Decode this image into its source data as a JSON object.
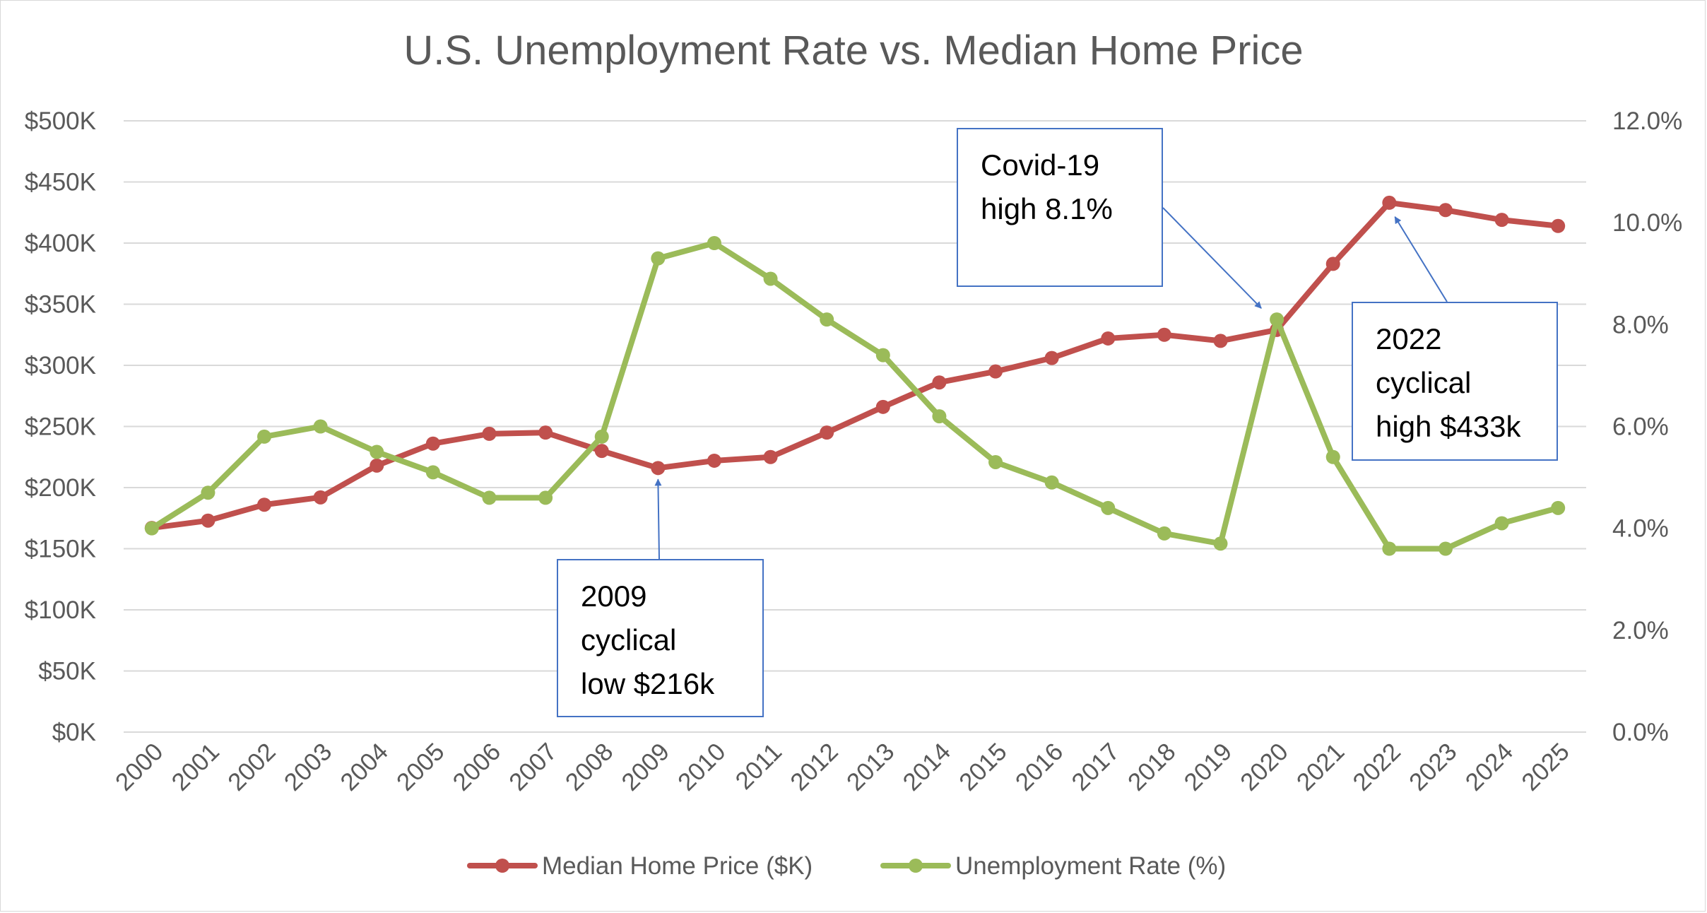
{
  "chart_data": {
    "type": "line",
    "title": "U.S. Unemployment Rate vs. Median Home Price",
    "xlabel": "",
    "ylabel": "",
    "categories": [
      "2000",
      "2001",
      "2002",
      "2003",
      "2004",
      "2005",
      "2006",
      "2007",
      "2008",
      "2009",
      "2010",
      "2011",
      "2012",
      "2013",
      "2014",
      "2015",
      "2016",
      "2017",
      "2018",
      "2019",
      "2020",
      "2021",
      "2022",
      "2023",
      "2024",
      "2025"
    ],
    "y_left": {
      "min": 0,
      "max": 500,
      "step": 50,
      "tick_labels": [
        "$0K",
        "$50K",
        "$100K",
        "$150K",
        "$200K",
        "$250K",
        "$300K",
        "$350K",
        "$400K",
        "$450K",
        "$500K"
      ]
    },
    "y_right": {
      "min": 0,
      "max": 12,
      "step": 2,
      "tick_labels": [
        "0.0%",
        "2.0%",
        "4.0%",
        "6.0%",
        "8.0%",
        "10.0%",
        "12.0%"
      ]
    },
    "grid": true,
    "legend_position": "bottom",
    "series": [
      {
        "name": "Median Home Price ($K)",
        "axis": "left",
        "color": "#c0504d",
        "values": [
          167,
          173,
          186,
          192,
          218,
          236,
          244,
          245,
          230,
          216,
          222,
          225,
          245,
          266,
          286,
          295,
          306,
          322,
          325,
          320,
          329,
          383,
          433,
          427,
          419,
          414
        ]
      },
      {
        "name": "Unemployment Rate (%)",
        "axis": "right",
        "color": "#9bbb59",
        "values": [
          4.0,
          4.7,
          5.8,
          6.0,
          5.5,
          5.1,
          4.6,
          4.6,
          5.8,
          9.3,
          9.6,
          8.9,
          8.1,
          7.4,
          6.2,
          5.3,
          4.9,
          4.4,
          3.9,
          3.7,
          8.1,
          5.4,
          3.6,
          3.6,
          4.1,
          4.4
        ]
      }
    ],
    "annotations": [
      {
        "lines": [
          "2009",
          "cyclical",
          "low $216k"
        ],
        "points_to": "2009"
      },
      {
        "lines": [
          "Covid-19",
          "high 8.1%"
        ],
        "points_to": "2020"
      },
      {
        "lines": [
          "2022",
          "cyclical",
          "high $433k"
        ],
        "points_to": "2022"
      }
    ],
    "colors": {
      "grid": "#d9d9d9",
      "text": "#595959",
      "callout_border": "#4472c4",
      "arrow": "#4472c4"
    }
  }
}
